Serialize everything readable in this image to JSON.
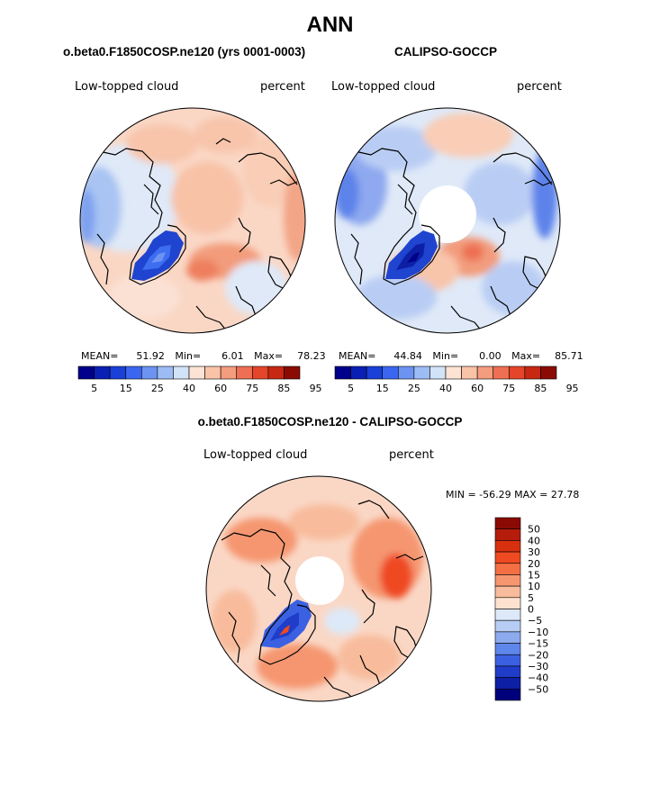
{
  "figure": {
    "title": "ANN",
    "variable": "Low-topped cloud",
    "units": "percent"
  },
  "panels": {
    "model": {
      "title": "o.beta0.F1850COSP.ne120 (yrs 0001-0003)",
      "mean_label": "MEAN=",
      "mean": "51.92",
      "min_label": "Min=",
      "min": "6.01",
      "max_label": "Max=",
      "max": "78.23"
    },
    "obs": {
      "title": "CALIPSO-GOCCP",
      "mean_label": "MEAN=",
      "mean": "44.84",
      "min_label": "Min=",
      "min": "0.00",
      "max_label": "Max=",
      "max": "85.71"
    },
    "diff": {
      "title": "o.beta0.F1850COSP.ne120 - CALIPSO-GOCCP",
      "minmax_text": "MIN = -56.29 MAX =  27.78"
    }
  },
  "colorbars": {
    "abs": {
      "tick_labels": [
        "5",
        "15",
        "25",
        "40",
        "60",
        "75",
        "85",
        "95"
      ],
      "colors": [
        "#00008b",
        "#0a1fb4",
        "#1a40d8",
        "#3b66ef",
        "#6d93f2",
        "#9dbcf5",
        "#d2e3f8",
        "#fce3d4",
        "#f9c3a8",
        "#f49c7e",
        "#ee6f53",
        "#e5452a",
        "#c62812",
        "#8b0b04"
      ]
    },
    "diff": {
      "tick_labels": [
        "50",
        "40",
        "30",
        "20",
        "15",
        "10",
        "5",
        "0",
        "−5",
        "−10",
        "−15",
        "−20",
        "−30",
        "−40",
        "−50"
      ],
      "colors": [
        "#8b0b04",
        "#b51c0b",
        "#d8300f",
        "#ef4a22",
        "#f56f44",
        "#f59670",
        "#f8bc9c",
        "#fde2d0",
        "#dde9f8",
        "#b7cdf4",
        "#8daaef",
        "#5f86ea",
        "#3b61e2",
        "#1f3dc9",
        "#0d1fa5",
        "#00007d"
      ]
    }
  },
  "chart_data": [
    {
      "type": "heatmap",
      "subtype": "polar-stereographic map",
      "title": "o.beta0.F1850COSP.ne120 (yrs 0001-0003)",
      "variable": "Low-topped cloud",
      "units": "percent",
      "stats": {
        "mean": 51.92,
        "min": 6.01,
        "max": 78.23
      },
      "colorbar_levels": [
        5,
        10,
        15,
        20,
        25,
        30,
        40,
        50,
        60,
        70,
        75,
        80,
        85,
        90,
        95
      ]
    },
    {
      "type": "heatmap",
      "subtype": "polar-stereographic map",
      "title": "CALIPSO-GOCCP",
      "variable": "Low-topped cloud",
      "units": "percent",
      "stats": {
        "mean": 44.84,
        "min": 0.0,
        "max": 85.71
      }
    },
    {
      "type": "heatmap",
      "subtype": "polar-stereographic map",
      "title": "o.beta0.F1850COSP.ne120 - CALIPSO-GOCCP",
      "variable": "Low-topped cloud",
      "units": "percent",
      "stats": {
        "min": -56.29,
        "max": 27.78
      },
      "colorbar_levels": [
        -50,
        -40,
        -30,
        -20,
        -15,
        -10,
        -5,
        0,
        5,
        10,
        15,
        20,
        30,
        40,
        50
      ]
    }
  ]
}
